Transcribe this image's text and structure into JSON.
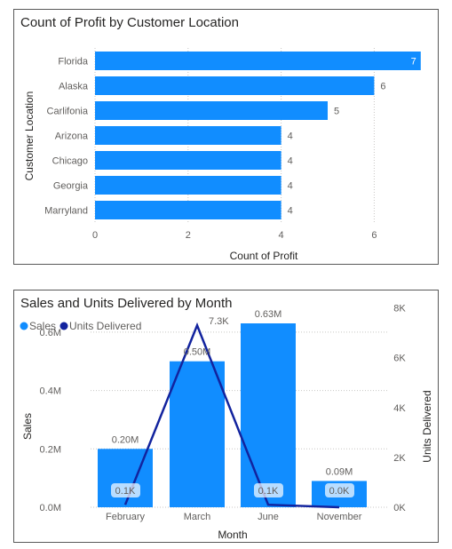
{
  "colors": {
    "sales": "#118dff",
    "units": "#12239e",
    "grid": "#c8c6c4",
    "text": "#605e5c"
  },
  "chart_data": [
    {
      "type": "bar",
      "orientation": "horizontal",
      "title": "Count of Profit by Customer Location",
      "xlabel": "Count of Profit",
      "ylabel": "Customer Location",
      "categories": [
        "Florida",
        "Alaska",
        "Carlifonia",
        "Arizona",
        "Chicago",
        "Georgia",
        "Marryland"
      ],
      "values": [
        7,
        6,
        5,
        4,
        4,
        4,
        4
      ],
      "xlim": [
        0,
        7
      ],
      "xticks": [
        "0",
        "2",
        "4",
        "6"
      ],
      "data_labels": [
        "7",
        "6",
        "5",
        "4",
        "4",
        "4",
        "4"
      ],
      "grid": true
    },
    {
      "type": "bar+line",
      "title": "Sales and Units Delivered by Month",
      "xlabel": "Month",
      "ylabel": "Sales",
      "y2label": "Units Delivered",
      "categories": [
        "February",
        "March",
        "June",
        "November"
      ],
      "legend": [
        "Sales",
        "Units Delivered"
      ],
      "legend_position": "top-left",
      "series": [
        {
          "name": "Sales",
          "kind": "bar",
          "values": [
            0.2,
            0.5,
            0.63,
            0.09
          ],
          "labels": [
            "0.20M",
            "0.50M",
            "0.63M",
            "0.09M"
          ]
        },
        {
          "name": "Units Delivered",
          "kind": "line",
          "values": [
            0.1,
            7.3,
            0.1,
            0.0
          ],
          "labels": [
            "0.1K",
            "7.3K",
            "0.1K",
            "0.0K"
          ]
        }
      ],
      "ylim": [
        0,
        0.7
      ],
      "yticks": [
        "0.0M",
        "0.2M",
        "0.4M",
        "0.6M"
      ],
      "y2lim": [
        0,
        8.2
      ],
      "y2ticks": [
        "0K",
        "2K",
        "4K",
        "6K",
        "8K"
      ],
      "grid": true
    }
  ]
}
